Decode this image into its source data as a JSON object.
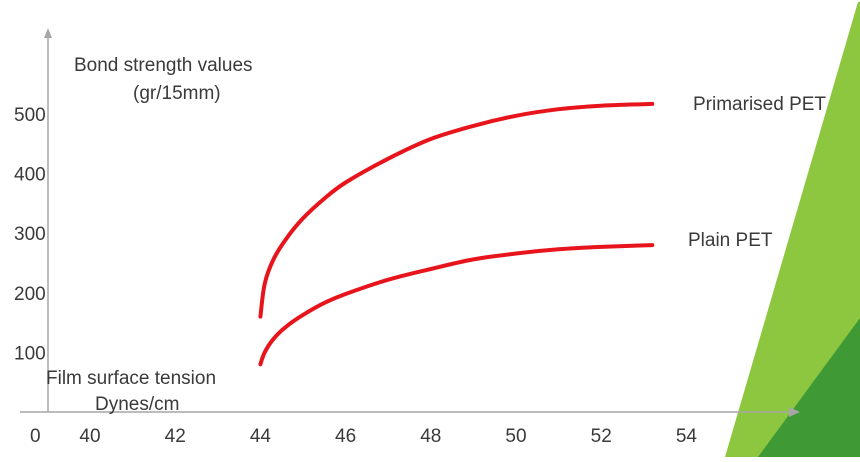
{
  "accent_colors": {
    "curve": "#e8141c",
    "axis": "#a6a6a6",
    "green_light": "#8dc63f",
    "green_dark": "#3f9a36"
  },
  "chart_data": {
    "type": "line",
    "title": "",
    "ylabel": [
      "Bond strength values",
      "(gr/15mm)"
    ],
    "xlabel": [
      "Film surface tension",
      "Dynes/cm"
    ],
    "x_origin_label": "0",
    "x_ticks": [
      40,
      42,
      44,
      46,
      48,
      50,
      52,
      54
    ],
    "y_ticks": [
      100,
      200,
      300,
      400,
      500
    ],
    "xlim": [
      40,
      54
    ],
    "ylim": [
      0,
      550
    ],
    "grid": false,
    "series": [
      {
        "name": "Primarised PET",
        "x": [
          44.0,
          44.1,
          44.3,
          44.6,
          45.0,
          45.5,
          46.0,
          47.0,
          48.0,
          49.0,
          50.0,
          51.0,
          52.0,
          53.2
        ],
        "y": [
          160,
          215,
          255,
          290,
          325,
          358,
          385,
          425,
          458,
          480,
          497,
          508,
          514,
          517
        ]
      },
      {
        "name": "Plain PET",
        "x": [
          44.0,
          44.1,
          44.3,
          44.6,
          45.0,
          45.5,
          46.0,
          47.0,
          48.0,
          49.0,
          50.0,
          51.0,
          52.0,
          53.2
        ],
        "y": [
          80,
          100,
          122,
          143,
          163,
          183,
          198,
          222,
          240,
          256,
          266,
          273,
          277,
          280
        ]
      }
    ]
  }
}
